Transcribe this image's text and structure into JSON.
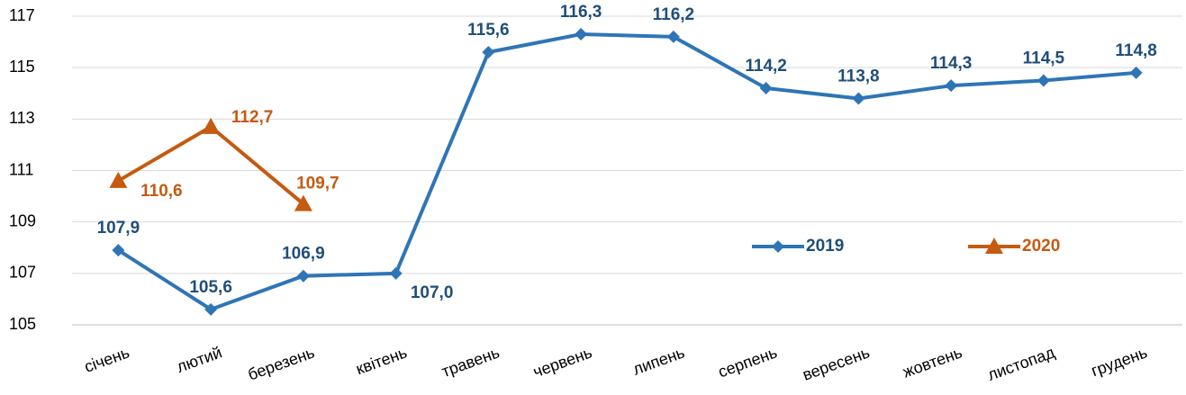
{
  "chart_data": {
    "type": "line",
    "categories": [
      "січень",
      "лютий",
      "березень",
      "квітень",
      "травень",
      "червень",
      "липень",
      "серпень",
      "вересень",
      "жовтень",
      "листопад",
      "грудень"
    ],
    "series": [
      {
        "name": "2019",
        "color": "#2e75b6",
        "marker": "diamond",
        "values": [
          107.9,
          105.6,
          106.9,
          107.0,
          115.6,
          116.3,
          116.2,
          114.2,
          113.8,
          114.3,
          114.5,
          114.8
        ],
        "value_labels": [
          "107,9",
          "105,6",
          "106,9",
          "107,0",
          "115,6",
          "116,3",
          "116,2",
          "114,2",
          "113,8",
          "114,3",
          "114,5",
          "114,8"
        ]
      },
      {
        "name": "2020",
        "color": "#c55a11",
        "marker": "triangle",
        "values": [
          110.6,
          112.7,
          109.7,
          null,
          null,
          null,
          null,
          null,
          null,
          null,
          null,
          null
        ],
        "value_labels": [
          "110,6",
          "112,7",
          "109,7",
          null,
          null,
          null,
          null,
          null,
          null,
          null,
          null,
          null
        ]
      }
    ],
    "ylim": [
      105,
      117
    ],
    "yticks": [
      105,
      107,
      109,
      111,
      113,
      115,
      117
    ],
    "grid": true
  }
}
